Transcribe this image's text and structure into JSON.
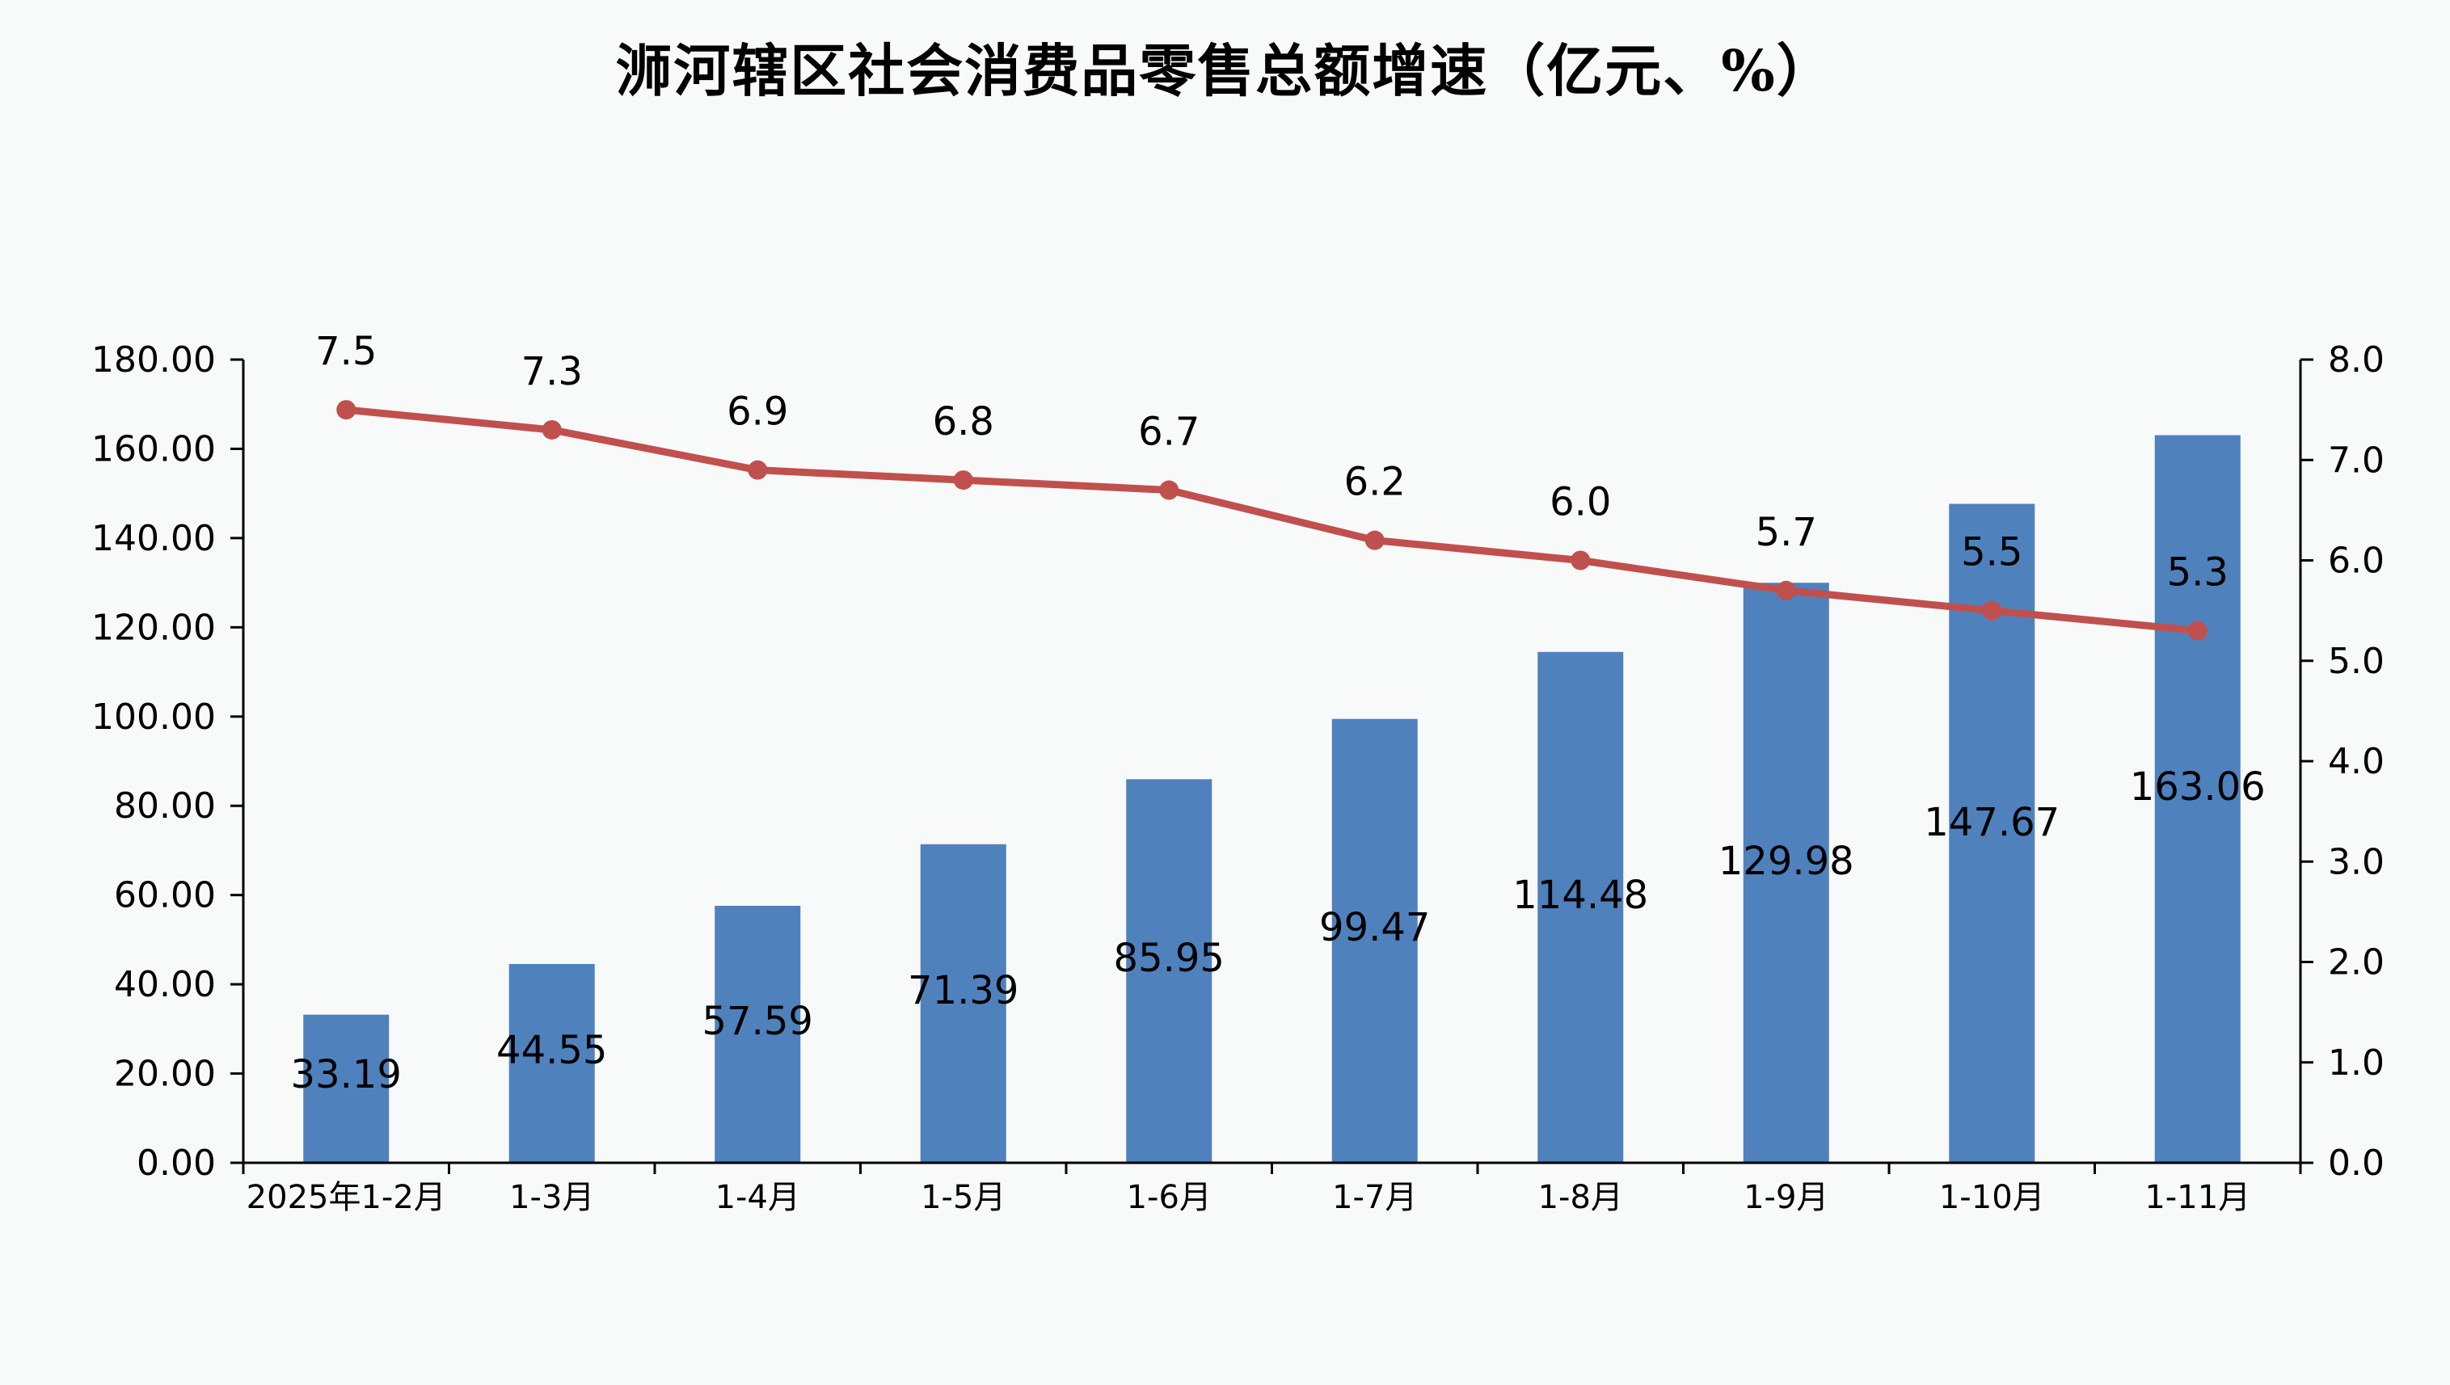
{
  "chart_data": {
    "type": "bar",
    "title": "浉河辖区社会消费品零售总额增速（亿元、%）",
    "categories": [
      "2025年1-2月",
      "1-3月",
      "1-4月",
      "1-5月",
      "1-6月",
      "1-7月",
      "1-8月",
      "1-9月",
      "1-10月",
      "1-11月"
    ],
    "series": [
      {
        "type": "bar",
        "axis": "left",
        "values": [
          33.19,
          44.55,
          57.59,
          71.39,
          85.95,
          99.47,
          114.48,
          129.98,
          147.67,
          163.06
        ],
        "labels": [
          "33.19",
          "44.55",
          "57.59",
          "71.39",
          "85.95",
          "99.47",
          "114.48",
          "129.98",
          "147.67",
          "163.06"
        ],
        "color": "#4f81bd"
      },
      {
        "type": "line",
        "axis": "right",
        "values": [
          7.5,
          7.3,
          6.9,
          6.8,
          6.7,
          6.2,
          6.0,
          5.7,
          5.5,
          5.3
        ],
        "labels": [
          "7.5",
          "7.3",
          "6.9",
          "6.8",
          "6.7",
          "6.2",
          "6.0",
          "5.7",
          "5.5",
          "5.3"
        ],
        "color": "#c0504d"
      }
    ],
    "y_left": {
      "ylim": [
        0,
        180
      ],
      "ticks": [
        "0.00",
        "20.00",
        "40.00",
        "60.00",
        "80.00",
        "100.00",
        "120.00",
        "140.00",
        "160.00",
        "180.00"
      ]
    },
    "y_right": {
      "ylim": [
        0,
        8
      ],
      "ticks": [
        "0.0",
        "1.0",
        "2.0",
        "3.0",
        "4.0",
        "5.0",
        "6.0",
        "7.0",
        "8.0"
      ]
    },
    "grid": false,
    "legend": "none",
    "background": "#f8f9f9",
    "axis_color": "#000000"
  }
}
